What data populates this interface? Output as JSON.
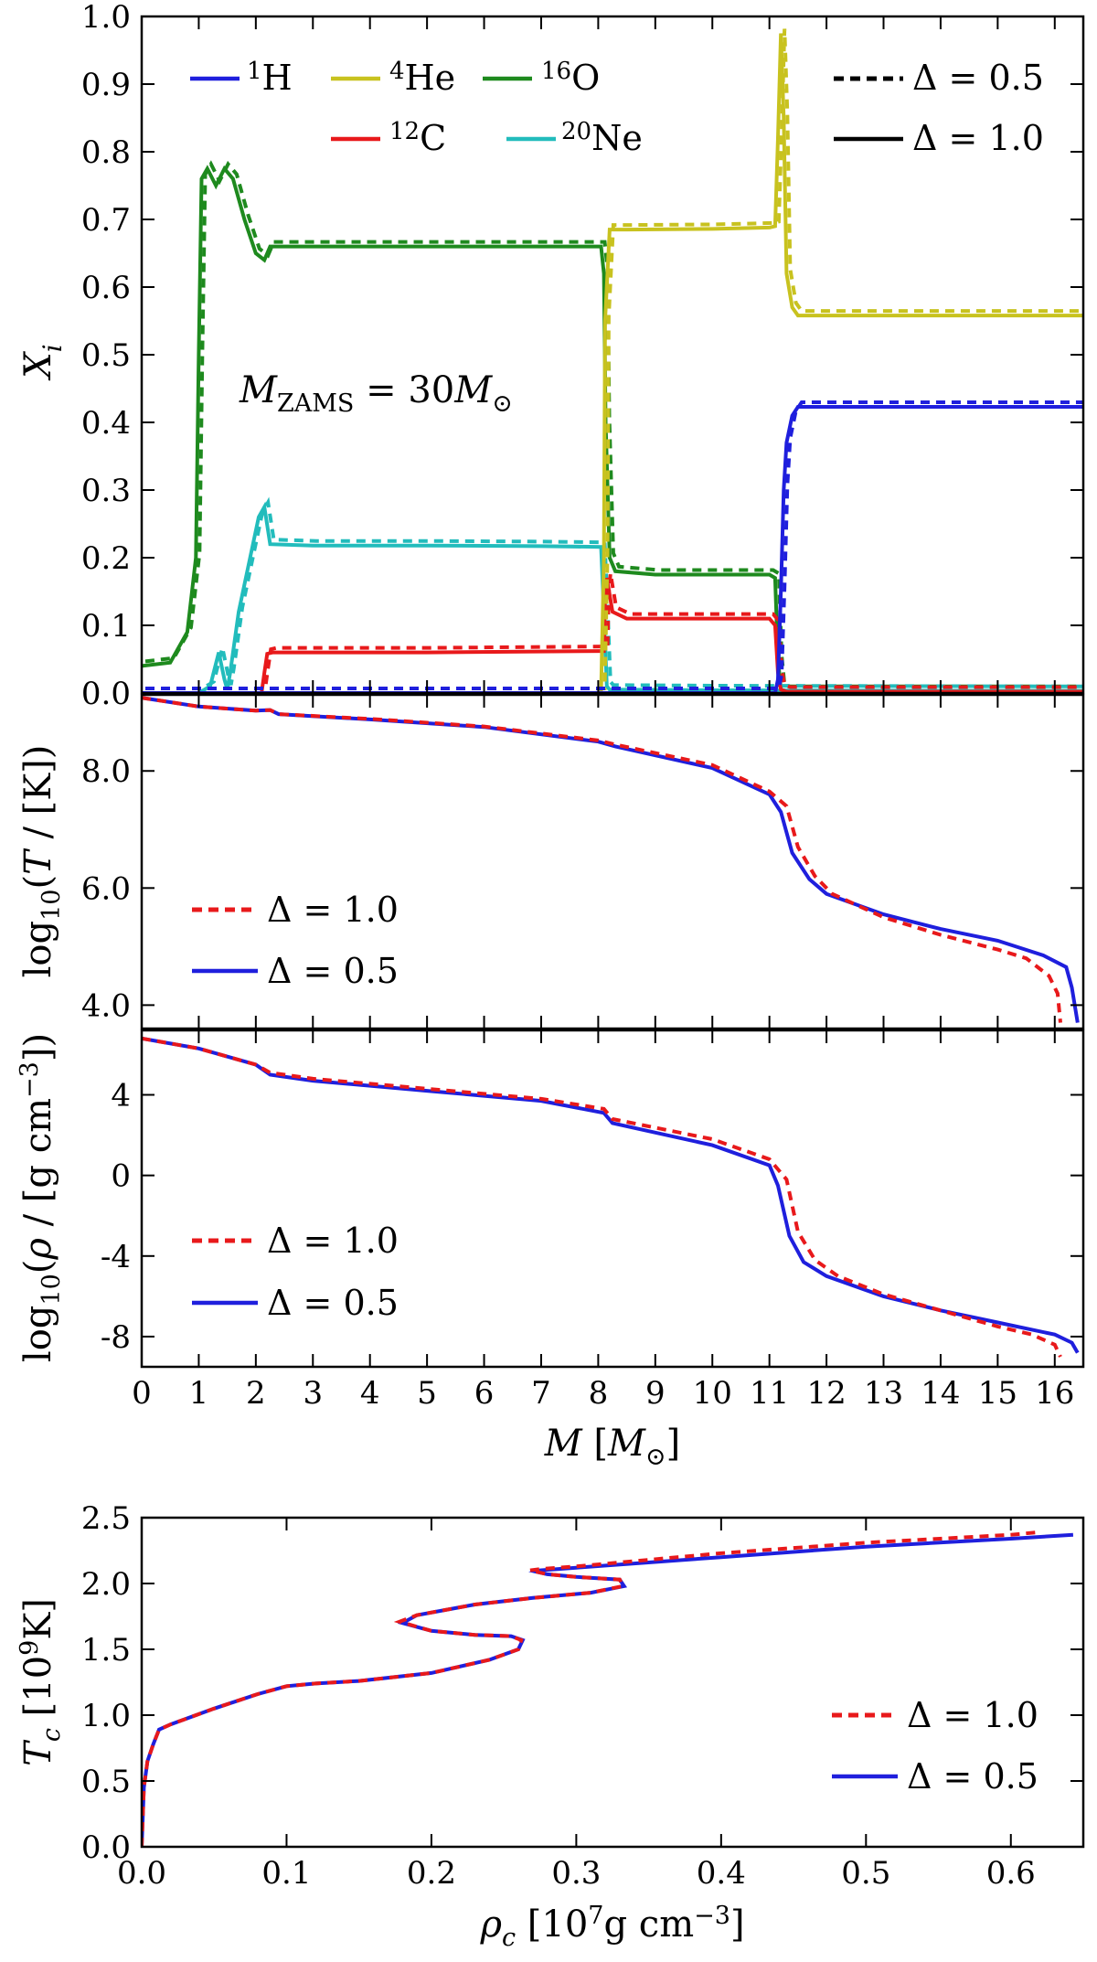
{
  "chart_data": [
    {
      "id": "abundance",
      "type": "line",
      "ylabel": "X_i",
      "xlim": [
        0,
        16.5
      ],
      "ylim": [
        0,
        1.0
      ],
      "y_ticks": [
        "0.0",
        "0.1",
        "0.2",
        "0.3",
        "0.4",
        "0.5",
        "0.6",
        "0.7",
        "0.8",
        "0.9",
        "1.0"
      ],
      "annotation": "M_ZAMS = 30M_⊙",
      "legend_species": [
        {
          "label": "1H",
          "color": "#1f1fdd"
        },
        {
          "label": "4He",
          "color": "#c8c21f"
        },
        {
          "label": "16O",
          "color": "#1e8a1e"
        },
        {
          "label": "12C",
          "color": "#e8191b"
        },
        {
          "label": "20Ne",
          "color": "#22bcbc"
        }
      ],
      "legend_styles": [
        {
          "label": "Δ = 0.5",
          "style": "dashed"
        },
        {
          "label": "Δ = 1.0",
          "style": "solid"
        }
      ],
      "series": [
        {
          "name": "16O",
          "color": "#1e8a1e",
          "x": [
            0,
            0.5,
            0.8,
            0.95,
            1.0,
            1.05,
            1.15,
            1.3,
            1.45,
            1.6,
            1.8,
            2.0,
            2.15,
            2.25,
            3,
            5,
            7,
            8.05,
            8.1,
            8.13,
            8.2,
            8.3,
            9,
            10,
            11,
            11.1,
            11.15,
            11.2,
            11.3,
            12,
            14,
            16.5
          ],
          "y": [
            0.04,
            0.045,
            0.09,
            0.2,
            0.5,
            0.76,
            0.775,
            0.75,
            0.775,
            0.76,
            0.7,
            0.65,
            0.64,
            0.66,
            0.66,
            0.66,
            0.66,
            0.66,
            0.62,
            0.4,
            0.2,
            0.18,
            0.175,
            0.175,
            0.175,
            0.17,
            0.05,
            0.005,
            0.003,
            0.003,
            0.003,
            0.003
          ]
        },
        {
          "name": "20Ne",
          "color": "#22bcbc",
          "x": [
            0,
            1.0,
            1.2,
            1.35,
            1.45,
            1.5,
            1.55,
            1.7,
            1.9,
            2.05,
            2.15,
            2.25,
            3,
            5,
            7,
            8.05,
            8.1,
            8.15,
            8.2,
            10,
            16.5
          ],
          "y": [
            0.0,
            0.0,
            0.01,
            0.06,
            0.02,
            0.005,
            0.03,
            0.12,
            0.2,
            0.26,
            0.275,
            0.22,
            0.218,
            0.218,
            0.217,
            0.216,
            0.12,
            0.01,
            0.005,
            0.004,
            0.003
          ]
        },
        {
          "name": "12C",
          "color": "#e8191b",
          "x": [
            0,
            2.1,
            2.15,
            2.2,
            2.3,
            5,
            8.05,
            8.1,
            8.12,
            8.15,
            8.25,
            8.5,
            10,
            11.0,
            11.1,
            11.15,
            11.2,
            11.3,
            16.5
          ],
          "y": [
            0.0,
            0.0,
            0.03,
            0.058,
            0.06,
            0.06,
            0.062,
            0.062,
            0.14,
            0.17,
            0.12,
            0.11,
            0.11,
            0.11,
            0.1,
            0.03,
            0.005,
            0.002,
            0.002
          ]
        },
        {
          "name": "4He",
          "color": "#c8c21f",
          "x": [
            0,
            8.05,
            8.1,
            8.12,
            8.2,
            8.5,
            10,
            11.0,
            11.1,
            11.15,
            11.2,
            11.25,
            11.3,
            11.4,
            11.5,
            13,
            16.5
          ],
          "y": [
            0.0,
            0.0,
            0.2,
            0.55,
            0.685,
            0.685,
            0.686,
            0.688,
            0.69,
            0.82,
            0.975,
            0.85,
            0.62,
            0.57,
            0.558,
            0.558,
            0.558
          ]
        },
        {
          "name": "1H",
          "color": "#1f1fdd",
          "x": [
            0,
            11.1,
            11.15,
            11.2,
            11.25,
            11.3,
            11.4,
            11.5,
            13,
            16.5
          ],
          "y": [
            0.0,
            0.0,
            0.02,
            0.15,
            0.3,
            0.37,
            0.41,
            0.423,
            0.423,
            0.423
          ]
        }
      ]
    },
    {
      "id": "temperature",
      "type": "line",
      "ylabel": "log10(T / [K])",
      "xlim": [
        0,
        16.5
      ],
      "ylim": [
        3.6,
        9.3
      ],
      "y_ticks": [
        "4.0",
        "6.0",
        "8.0"
      ],
      "legend": [
        {
          "label": "Δ = 1.0",
          "color": "#e8191b",
          "style": "dashed"
        },
        {
          "label": "Δ = 0.5",
          "color": "#1f1fdd",
          "style": "solid"
        }
      ],
      "series": [
        {
          "name": "Δ = 0.5",
          "color": "#1f1fdd",
          "style": "solid",
          "x": [
            0,
            1,
            2,
            2.25,
            2.4,
            4,
            6,
            8,
            8.3,
            10,
            11,
            11.2,
            11.4,
            11.7,
            12,
            13,
            14,
            15,
            15.8,
            16.2,
            16.3,
            16.4
          ],
          "y": [
            9.25,
            9.1,
            9.03,
            9.04,
            8.97,
            8.88,
            8.75,
            8.5,
            8.42,
            8.05,
            7.6,
            7.3,
            6.6,
            6.15,
            5.9,
            5.55,
            5.3,
            5.1,
            4.85,
            4.65,
            4.3,
            3.7
          ]
        },
        {
          "name": "Δ = 1.0",
          "color": "#e8191b",
          "style": "dashed",
          "x": [
            0,
            1,
            2,
            2.25,
            2.4,
            4,
            6,
            8,
            8.3,
            10,
            11,
            11.3,
            11.5,
            11.8,
            12.1,
            13,
            14,
            15,
            15.5,
            15.9,
            16.05,
            16.1
          ],
          "y": [
            9.25,
            9.1,
            9.03,
            9.04,
            8.97,
            8.89,
            8.76,
            8.52,
            8.45,
            8.1,
            7.65,
            7.4,
            6.7,
            6.2,
            5.9,
            5.5,
            5.2,
            4.95,
            4.8,
            4.5,
            4.2,
            3.7
          ]
        }
      ]
    },
    {
      "id": "density",
      "type": "line",
      "ylabel": "log10(ρ / [g cm⁻³])",
      "xlim": [
        0,
        16.5
      ],
      "ylim": [
        -9.5,
        7.2
      ],
      "y_ticks": [
        "-8",
        "-4",
        "0",
        "4"
      ],
      "legend": [
        {
          "label": "Δ = 1.0",
          "color": "#e8191b",
          "style": "dashed"
        },
        {
          "label": "Δ = 0.5",
          "color": "#1f1fdd",
          "style": "solid"
        }
      ],
      "series": [
        {
          "name": "Δ = 0.5",
          "color": "#1f1fdd",
          "style": "solid",
          "x": [
            0,
            1,
            2,
            2.25,
            3,
            5,
            7,
            8.1,
            8.25,
            10,
            11,
            11.15,
            11.35,
            11.6,
            12,
            13,
            14,
            15,
            16,
            16.3,
            16.4
          ],
          "y": [
            6.8,
            6.3,
            5.5,
            5.0,
            4.7,
            4.2,
            3.7,
            3.1,
            2.6,
            1.5,
            0.5,
            -0.5,
            -3.0,
            -4.3,
            -5.0,
            -6.0,
            -6.7,
            -7.3,
            -7.9,
            -8.3,
            -8.8
          ]
        },
        {
          "name": "Δ = 1.0",
          "color": "#e8191b",
          "style": "dashed",
          "x": [
            0,
            1,
            2,
            2.25,
            3,
            5,
            7,
            8.1,
            8.25,
            10,
            11,
            11.3,
            11.5,
            11.8,
            12.2,
            13,
            14,
            15,
            15.6,
            16.0,
            16.1
          ],
          "y": [
            6.8,
            6.3,
            5.5,
            5.1,
            4.8,
            4.3,
            3.8,
            3.3,
            2.8,
            1.8,
            0.8,
            -0.2,
            -2.8,
            -4.2,
            -5.0,
            -5.9,
            -6.7,
            -7.5,
            -7.9,
            -8.4,
            -9.0
          ]
        }
      ]
    },
    {
      "id": "central",
      "type": "line",
      "xlabel": "ρ_c [10⁷g cm⁻³]",
      "ylabel": "T_c [10⁹K]",
      "xlim": [
        0,
        0.65
      ],
      "ylim": [
        0,
        2.5
      ],
      "x_ticks": [
        "0.0",
        "0.1",
        "0.2",
        "0.3",
        "0.4",
        "0.5",
        "0.6"
      ],
      "y_ticks": [
        "0.0",
        "0.5",
        "1.0",
        "1.5",
        "2.0",
        "2.5"
      ],
      "legend": [
        {
          "label": "Δ = 1.0",
          "color": "#e8191b",
          "style": "dashed"
        },
        {
          "label": "Δ = 0.5",
          "color": "#1f1fdd",
          "style": "solid"
        }
      ],
      "series": [
        {
          "name": "Δ = 0.5",
          "color": "#1f1fdd",
          "style": "solid",
          "x": [
            0,
            0.0015,
            0.004,
            0.008,
            0.012,
            0.02,
            0.05,
            0.08,
            0.1,
            0.12,
            0.15,
            0.2,
            0.24,
            0.26,
            0.263,
            0.255,
            0.23,
            0.2,
            0.18,
            0.19,
            0.23,
            0.27,
            0.31,
            0.333,
            0.33,
            0.3,
            0.28,
            0.272,
            0.275,
            0.3,
            0.4,
            0.5,
            0.6,
            0.643
          ],
          "y": [
            0,
            0.45,
            0.65,
            0.78,
            0.89,
            0.93,
            1.05,
            1.16,
            1.22,
            1.24,
            1.26,
            1.32,
            1.42,
            1.5,
            1.57,
            1.6,
            1.61,
            1.64,
            1.7,
            1.76,
            1.84,
            1.89,
            1.93,
            1.98,
            2.03,
            2.05,
            2.07,
            2.09,
            2.1,
            2.12,
            2.2,
            2.28,
            2.34,
            2.37
          ]
        },
        {
          "name": "Δ = 1.0",
          "color": "#e8191b",
          "style": "dashed",
          "x": [
            0,
            0.0015,
            0.004,
            0.008,
            0.012,
            0.02,
            0.05,
            0.08,
            0.1,
            0.12,
            0.15,
            0.2,
            0.24,
            0.26,
            0.262,
            0.255,
            0.23,
            0.2,
            0.178,
            0.19,
            0.23,
            0.27,
            0.31,
            0.332,
            0.33,
            0.3,
            0.28,
            0.268,
            0.275,
            0.3,
            0.4,
            0.5,
            0.6,
            0.62
          ],
          "y": [
            0,
            0.45,
            0.65,
            0.78,
            0.89,
            0.93,
            1.05,
            1.16,
            1.22,
            1.24,
            1.26,
            1.32,
            1.42,
            1.5,
            1.57,
            1.6,
            1.61,
            1.64,
            1.71,
            1.76,
            1.84,
            1.89,
            1.93,
            1.98,
            2.03,
            2.05,
            2.07,
            2.1,
            2.11,
            2.13,
            2.23,
            2.31,
            2.37,
            2.39
          ]
        }
      ]
    }
  ],
  "shared_xaxis": {
    "xlabel": "M [M_⊙]",
    "ticks": [
      "0",
      "1",
      "2",
      "3",
      "4",
      "5",
      "6",
      "7",
      "8",
      "9",
      "10",
      "11",
      "12",
      "13",
      "14",
      "15",
      "16"
    ]
  }
}
